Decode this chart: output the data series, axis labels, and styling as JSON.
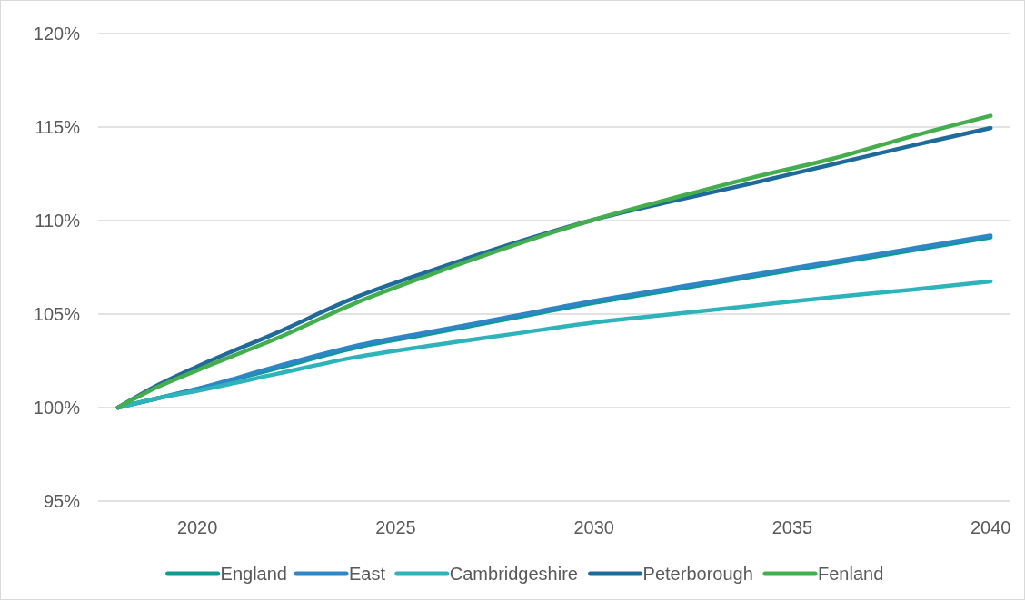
{
  "chart_data": {
    "type": "line",
    "x": [
      2018,
      2019,
      2020,
      2022,
      2024,
      2026,
      2028,
      2030,
      2032,
      2034,
      2036,
      2038,
      2040
    ],
    "xlim": [
      2017.5,
      2040.5
    ],
    "xticks": [
      2020,
      2025,
      2030,
      2035,
      2040
    ],
    "ylim": [
      95,
      120
    ],
    "yticks": [
      {
        "value": 95,
        "label": "95%"
      },
      {
        "value": 100,
        "label": "100%"
      },
      {
        "value": 105,
        "label": "105%"
      },
      {
        "value": 110,
        "label": "110%"
      },
      {
        "value": 115,
        "label": "115%"
      },
      {
        "value": 120,
        "label": "120%"
      }
    ],
    "grid": "y",
    "legend": "bottom",
    "marker": "none",
    "line_style": "solid",
    "series": [
      {
        "name": "England",
        "color": "#0e9a93",
        "values": [
          100,
          100.5,
          101.0,
          102.1,
          103.2,
          104.0,
          104.8,
          105.6,
          106.3,
          107.0,
          107.7,
          108.4,
          109.1
        ]
      },
      {
        "name": "East",
        "color": "#2e86c7",
        "values": [
          100,
          100.5,
          101.0,
          102.2,
          103.3,
          104.1,
          104.9,
          105.7,
          106.4,
          107.1,
          107.8,
          108.5,
          109.2
        ]
      },
      {
        "name": "Cambridgeshire",
        "color": "#2eb3bb",
        "values": [
          100,
          100.5,
          100.9,
          101.8,
          102.7,
          103.35,
          103.95,
          104.55,
          105.0,
          105.45,
          105.9,
          106.3,
          106.75
        ]
      },
      {
        "name": "Peterborough",
        "color": "#1f6a9a",
        "values": [
          100,
          101.2,
          102.2,
          104.0,
          105.9,
          107.4,
          108.8,
          110.05,
          111.05,
          112.0,
          113.0,
          114.0,
          114.95
        ]
      },
      {
        "name": "Fenland",
        "color": "#44ad4d",
        "values": [
          100,
          101.1,
          102.0,
          103.7,
          105.6,
          107.2,
          108.7,
          110.05,
          111.2,
          112.3,
          113.3,
          114.5,
          115.6
        ]
      }
    ]
  }
}
